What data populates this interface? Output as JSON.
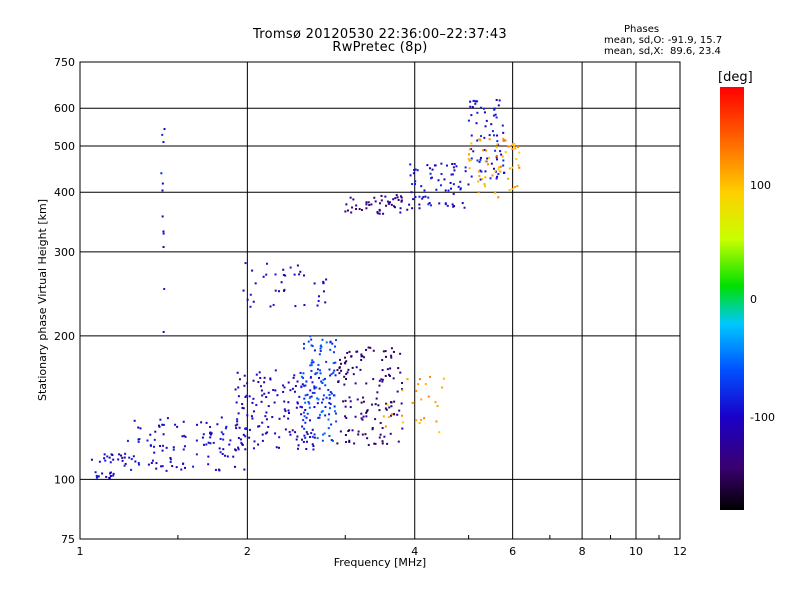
{
  "header": {
    "title_line1": "Tromsø 20120530 22:36:00–22:37:43",
    "title_line2": "RwPretec (8p)",
    "phases_heading": "Phases",
    "phases_o": "mean, sd,O: -91.9, 15.7",
    "phases_x": "mean, sd,X:  89.6, 23.4"
  },
  "colorbar": {
    "unit": "[deg]",
    "ticks": [
      "100",
      "0",
      "-100"
    ],
    "tick_values": [
      100,
      0,
      -100
    ],
    "range": [
      -180,
      180
    ]
  },
  "chart_data": {
    "type": "scatter",
    "xlabel": "Frequency [MHz]",
    "ylabel": "Stationary phase Virtual Height [km]",
    "xscale": "log",
    "yscale": "log",
    "xlim": [
      1,
      12
    ],
    "ylim": [
      75,
      750
    ],
    "x_ticks": [
      1,
      2,
      4,
      6,
      8,
      10,
      12
    ],
    "y_ticks": [
      75,
      100,
      200,
      300,
      400,
      500,
      600,
      750
    ],
    "grid": true,
    "clusters": [
      {
        "x_range": [
          1.05,
          1.15
        ],
        "y_range": [
          100,
          104
        ],
        "phase": -100,
        "n": 14
      },
      {
        "x_range": [
          1.05,
          1.2
        ],
        "y_range": [
          108,
          115
        ],
        "phase": -100,
        "n": 16
      },
      {
        "x_range": [
          1.2,
          2.0
        ],
        "y_range": [
          104,
          135
        ],
        "phase": -100,
        "n": 120
      },
      {
        "x_range": [
          1.9,
          2.7
        ],
        "y_range": [
          115,
          170
        ],
        "phase": -110,
        "n": 140
      },
      {
        "x_range": [
          2.5,
          2.9
        ],
        "y_range": [
          120,
          200
        ],
        "phase": -70,
        "n": 120
      },
      {
        "x_range": [
          2.9,
          3.8
        ],
        "y_range": [
          118,
          190
        ],
        "phase": -140,
        "n": 140
      },
      {
        "x_range": [
          1.95,
          2.8
        ],
        "y_range": [
          230,
          285
        ],
        "phase": -105,
        "n": 40
      },
      {
        "x_range": [
          3.5,
          4.6
        ],
        "y_range": [
          125,
          165
        ],
        "phase": 110,
        "n": 28
      },
      {
        "x_range": [
          3.0,
          3.9
        ],
        "y_range": [
          360,
          395
        ],
        "phase": -130,
        "n": 50
      },
      {
        "x_range": [
          3.9,
          5.0
        ],
        "y_range": [
          370,
          460
        ],
        "phase": -100,
        "n": 70
      },
      {
        "x_range": [
          5.0,
          5.8
        ],
        "y_range": [
          420,
          630
        ],
        "phase": -95,
        "n": 70
      },
      {
        "x_range": [
          4.9,
          6.2
        ],
        "y_range": [
          390,
          520
        ],
        "phase": 110,
        "n": 60
      },
      {
        "x_range": [
          1.4,
          1.42
        ],
        "y_range": [
          200,
          600
        ],
        "phase": -100,
        "n": 12
      }
    ]
  }
}
